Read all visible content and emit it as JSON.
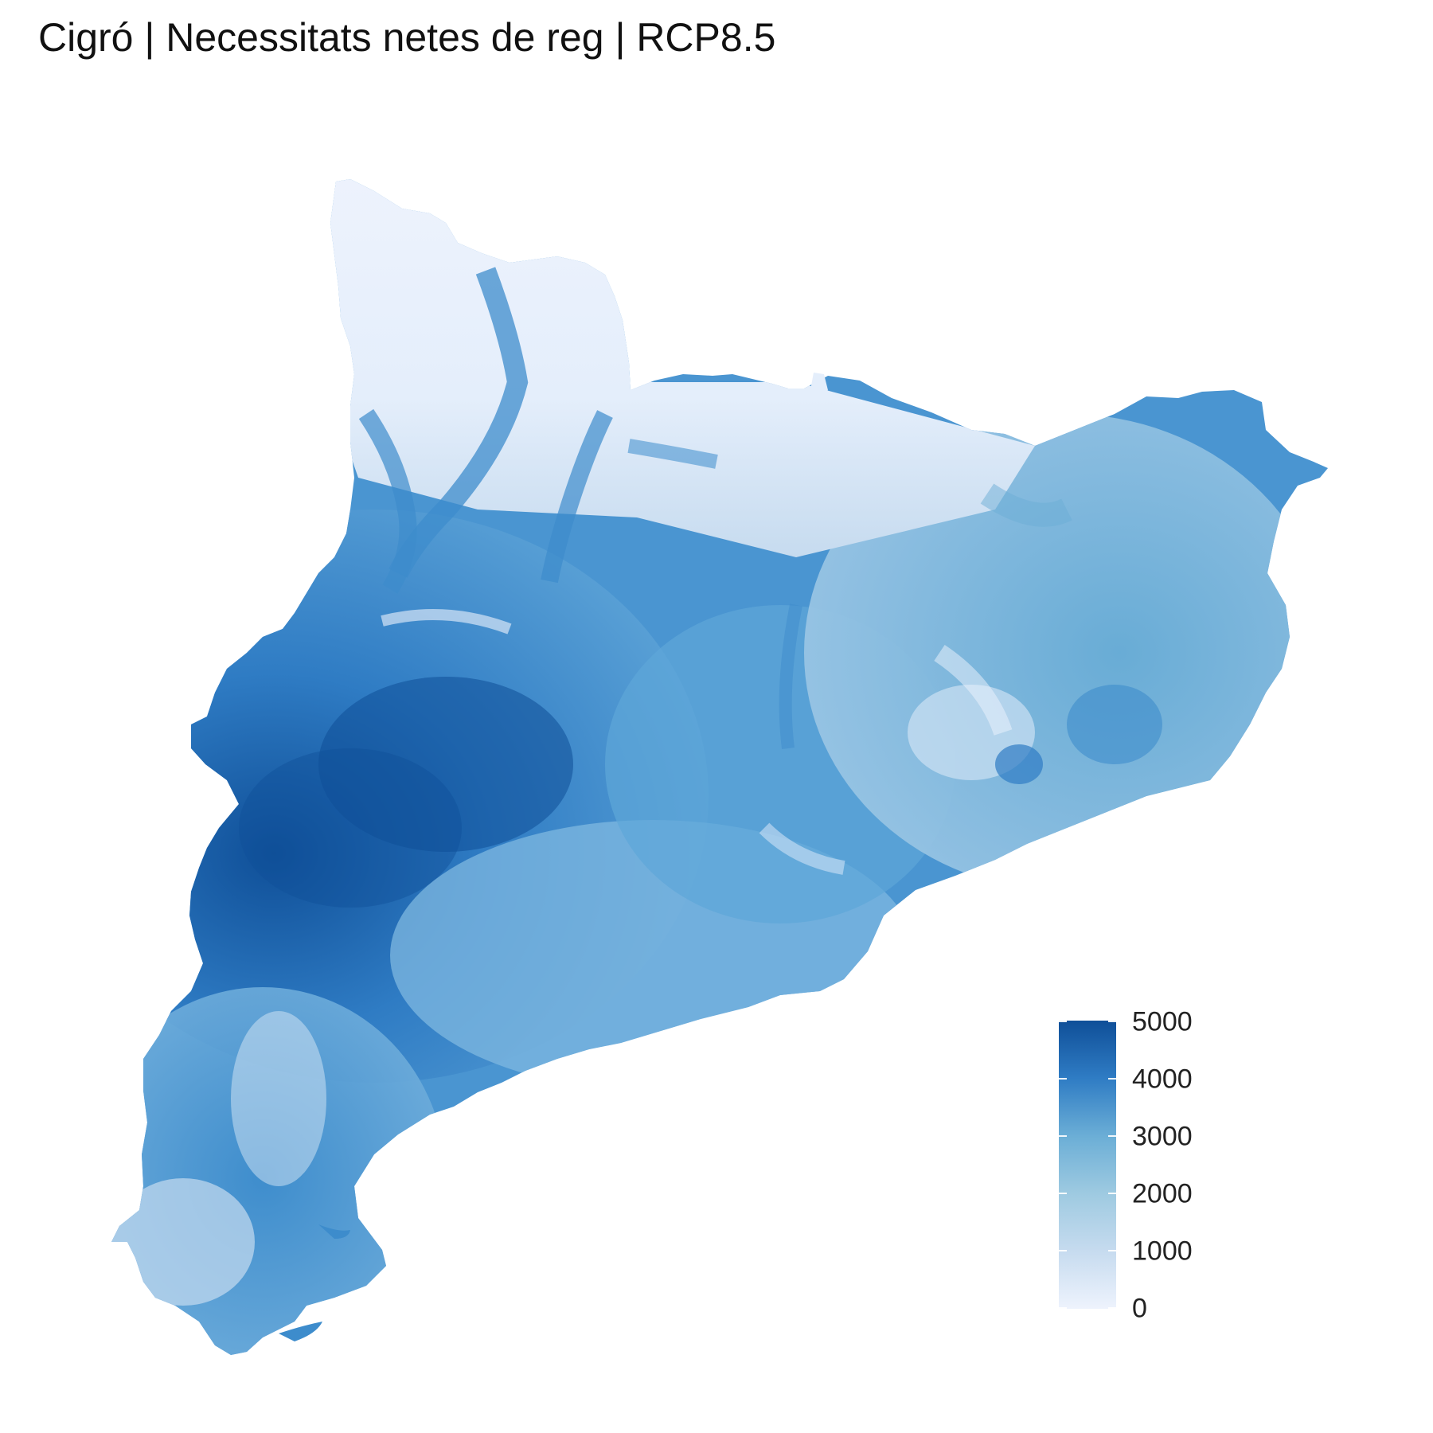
{
  "title": "Cigró | Necessitats netes de reg | RCP8.5",
  "colors": {
    "low": "#eef3fd",
    "mid": "#6baed6",
    "high": "#0f4f98"
  },
  "legend": {
    "min": 0,
    "max": 5000,
    "ticks": [
      "5000",
      "4000",
      "3000",
      "2000",
      "1000",
      "0"
    ]
  }
}
